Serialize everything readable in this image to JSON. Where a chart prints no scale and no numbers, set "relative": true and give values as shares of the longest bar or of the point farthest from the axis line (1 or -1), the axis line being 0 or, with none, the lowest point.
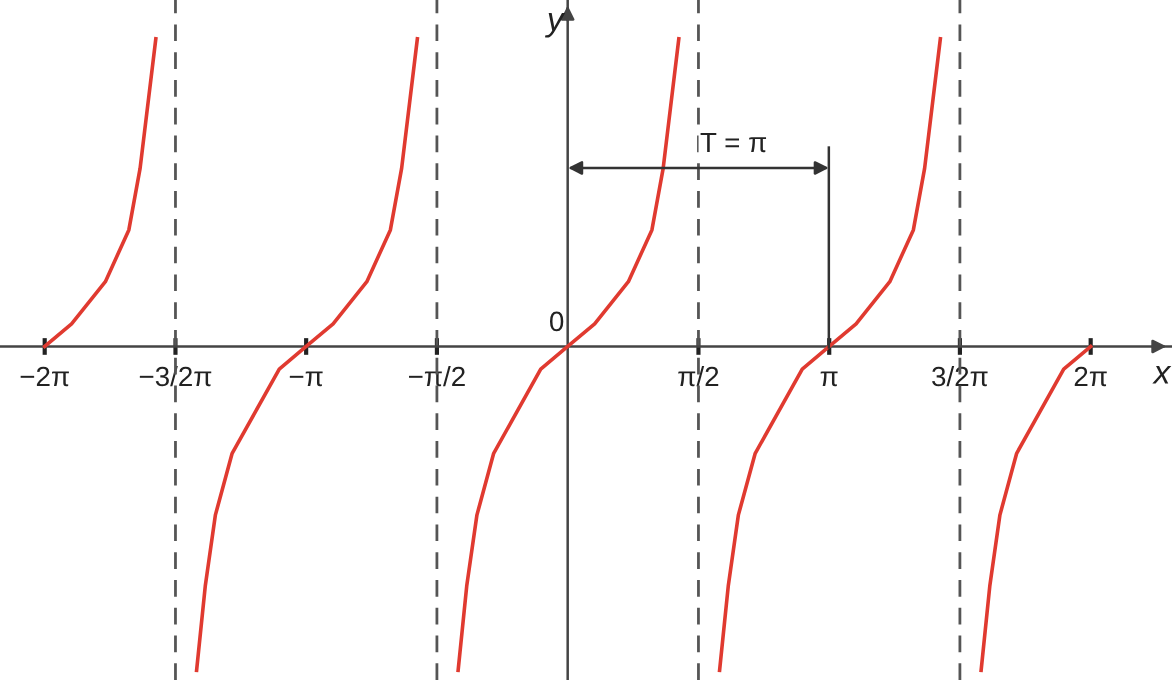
{
  "chart_data": {
    "type": "line",
    "relative": true,
    "xlabel": "x",
    "ylabel": "y",
    "xlim": [
      -6.82,
      7.26
    ],
    "xticks": [
      {
        "value": -6.283,
        "label": "−2π"
      },
      {
        "value": -4.712,
        "label": "−3/2π"
      },
      {
        "value": -3.142,
        "label": "−π"
      },
      {
        "value": -1.571,
        "label": "−π/2"
      },
      {
        "value": 1.571,
        "label": "π/2"
      },
      {
        "value": 3.142,
        "label": "π"
      },
      {
        "value": 4.712,
        "label": "3/2π"
      },
      {
        "value": 6.283,
        "label": "2π"
      }
    ],
    "tick_labels": "x",
    "grid": false,
    "marker": "none",
    "line_style": "solid",
    "series": [
      {
        "color": "#e03a30",
        "x": [
          -6.283,
          -5.96,
          -5.554,
          -5.272,
          -5.137,
          -4.948
        ],
        "values": [
          0,
          0.07,
          0.2,
          0.36,
          0.55,
          0.95
        ]
      },
      {
        "color": "#e03a30",
        "x": [
          -4.458,
          -4.354,
          -4.232,
          -4.031,
          -3.465,
          -3.142,
          -2.818,
          -2.413,
          -2.13,
          -1.995,
          -1.806
        ],
        "values": [
          -1,
          -0.74,
          -0.52,
          -0.33,
          -0.07,
          0,
          0.07,
          0.2,
          0.36,
          0.55,
          0.95
        ]
      },
      {
        "color": "#e03a30",
        "x": [
          -1.316,
          -1.213,
          -1.09,
          -0.889,
          -0.324,
          0,
          0.324,
          0.729,
          1.012,
          1.147,
          1.335
        ],
        "values": [
          -1,
          -0.74,
          -0.52,
          -0.33,
          -0.07,
          0,
          0.07,
          0.2,
          0.36,
          0.55,
          0.95
        ]
      },
      {
        "color": "#e03a30",
        "x": [
          1.825,
          1.929,
          2.051,
          2.253,
          2.818,
          3.142,
          3.465,
          3.87,
          4.153,
          4.288,
          4.477
        ],
        "values": [
          -1,
          -0.74,
          -0.52,
          -0.33,
          -0.07,
          0,
          0.07,
          0.2,
          0.36,
          0.55,
          0.95
        ]
      },
      {
        "color": "#e03a30",
        "x": [
          4.967,
          5.071,
          5.193,
          5.394,
          5.959,
          6.283
        ],
        "values": [
          -1,
          -0.74,
          -0.52,
          -0.33,
          -0.07,
          0
        ]
      }
    ],
    "ref_lines": [
      {
        "axis": "x",
        "value": -4.712,
        "color": "#555555",
        "line_style": "dashed"
      },
      {
        "axis": "x",
        "value": -1.571,
        "color": "#555555",
        "line_style": "dashed"
      },
      {
        "axis": "x",
        "value": 1.571,
        "color": "#555555",
        "line_style": "dashed"
      },
      {
        "axis": "x",
        "value": 4.712,
        "color": "#555555",
        "line_style": "dashed"
      }
    ],
    "annotations": [
      {
        "text": "0",
        "x": 0,
        "y": 0
      },
      "T = π"
    ]
  }
}
